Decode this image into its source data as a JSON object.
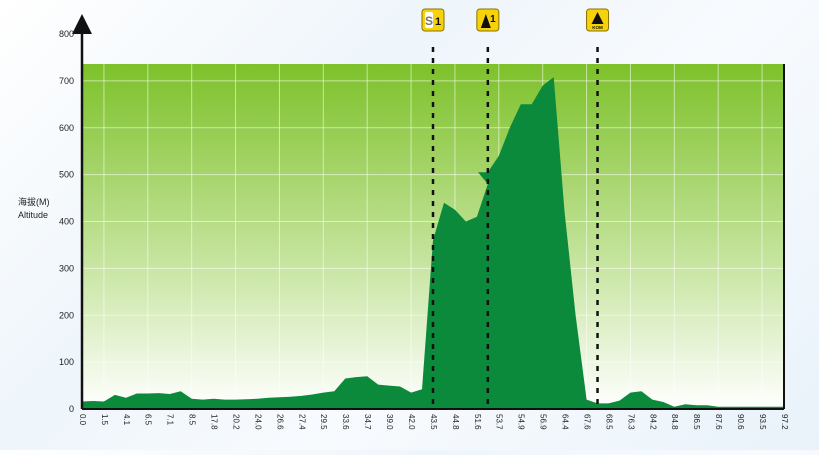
{
  "chart_data": {
    "type": "area",
    "ylabel_cn": "海拔(M)",
    "ylabel_en": "Altitude",
    "ylim": [
      0,
      800
    ],
    "yticks": [
      0,
      100,
      200,
      300,
      400,
      500,
      600,
      700,
      800
    ],
    "x_tick_labels": [
      "0.0",
      "1.5",
      "4.1",
      "6.5",
      "7.1",
      "8.5",
      "17.8",
      "20.2",
      "24.0",
      "26.6",
      "27.4",
      "29.5",
      "33.6",
      "34.7",
      "39.0",
      "42.0",
      "43.5",
      "44.8",
      "51.6",
      "53.7",
      "54.9",
      "56.9",
      "64.4",
      "67.6",
      "68.5",
      "76.3",
      "84.2",
      "84.8",
      "86.5",
      "87.6",
      "90.6",
      "93.5",
      "97.2"
    ],
    "x": [
      0,
      0.5,
      1,
      1.5,
      2,
      2.5,
      3,
      3.5,
      4,
      4.5,
      5,
      5.5,
      6,
      6.5,
      7,
      7.5,
      8,
      8.5,
      9,
      9.5,
      10,
      10.5,
      11,
      11.5,
      12,
      12.5,
      13,
      13.5,
      14,
      14.5,
      15,
      15.5,
      16,
      16.5,
      17,
      17.5,
      18,
      18.5,
      18.05,
      18.5,
      19,
      19.5,
      20,
      20.5,
      21,
      21.5,
      22,
      22.5,
      23,
      23.5,
      24,
      24.5,
      25,
      25.5,
      26,
      26.5,
      27,
      27.5,
      28,
      28.5,
      29,
      29.5,
      30,
      30.5,
      31,
      31.5,
      32
    ],
    "values": [
      16,
      17,
      16,
      30,
      24,
      33,
      33,
      34,
      32,
      38,
      22,
      20,
      22,
      20,
      20,
      21,
      22,
      24,
      25,
      26,
      28,
      31,
      35,
      38,
      65,
      68,
      70,
      52,
      50,
      48,
      35,
      42,
      360,
      440,
      425,
      400,
      410,
      480,
      505,
      505,
      540,
      600,
      650,
      650,
      690,
      708,
      420,
      200,
      20,
      12,
      12,
      18,
      35,
      38,
      20,
      15,
      5,
      10,
      8,
      8,
      5,
      5,
      5,
      5,
      5,
      5,
      5
    ],
    "markers": [
      {
        "label": "S1",
        "type": "sprint",
        "at": 16.0
      },
      {
        "label": "1",
        "type": "climb-cat-1",
        "at": 18.5
      },
      {
        "label": "KOM",
        "type": "kom-finish",
        "at": 23.5
      }
    ],
    "colors": {
      "fill": "#0a8a3a",
      "bg_top": "#7dc12a",
      "bg_bottom": "#ffffff",
      "marker_bg": "#f5d20a",
      "marker_border": "#6b5a00"
    },
    "grid": true
  }
}
